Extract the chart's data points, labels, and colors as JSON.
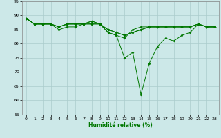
{
  "xlabel": "Humidité relative (%)",
  "background_color": "#cce8e8",
  "grid_color": "#aacccc",
  "line_color": "#007700",
  "marker": "D",
  "ylim": [
    55,
    95
  ],
  "xlim": [
    -0.5,
    23.5
  ],
  "yticks": [
    55,
    60,
    65,
    70,
    75,
    80,
    85,
    90,
    95
  ],
  "xticks": [
    0,
    1,
    2,
    3,
    4,
    5,
    6,
    7,
    8,
    9,
    10,
    11,
    12,
    13,
    14,
    15,
    16,
    17,
    18,
    19,
    20,
    21,
    22,
    23
  ],
  "series": [
    [
      89,
      87,
      87,
      87,
      86,
      87,
      87,
      87,
      87,
      87,
      84,
      83,
      75,
      77,
      62,
      73,
      79,
      82,
      81,
      83,
      84,
      87,
      86,
      86
    ],
    [
      89,
      87,
      87,
      87,
      86,
      87,
      87,
      87,
      87,
      87,
      84,
      83,
      82,
      85,
      86,
      86,
      86,
      86,
      86,
      86,
      86,
      87,
      86,
      86
    ],
    [
      89,
      87,
      87,
      87,
      86,
      87,
      87,
      87,
      88,
      87,
      85,
      84,
      83,
      84,
      85,
      86,
      86,
      86,
      86,
      86,
      86,
      87,
      86,
      86
    ],
    [
      89,
      87,
      87,
      87,
      85,
      86,
      86,
      87,
      88,
      87,
      85,
      84,
      83,
      84,
      85,
      86,
      86,
      86,
      86,
      86,
      86,
      87,
      86,
      86
    ]
  ]
}
